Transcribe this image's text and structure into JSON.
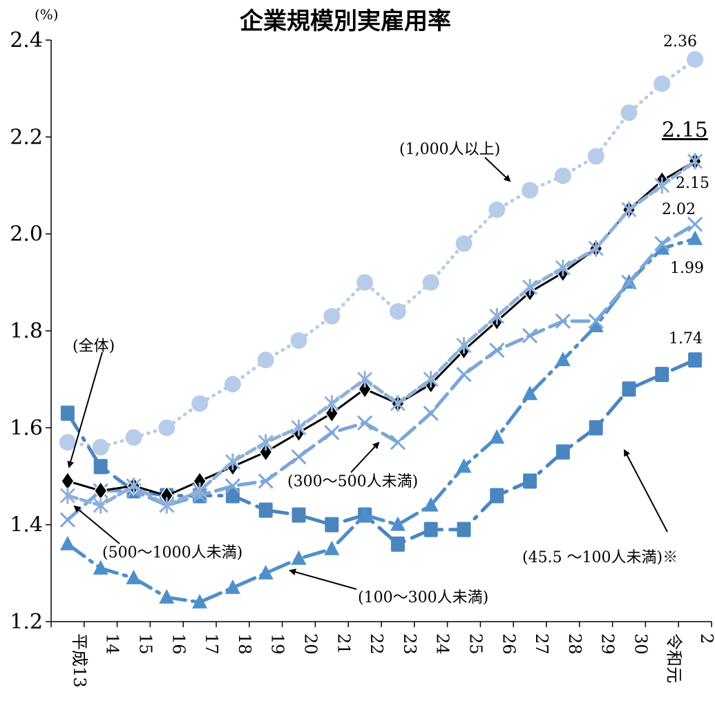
{
  "chart_data": {
    "type": "line",
    "title": "企業規模別実雇用率",
    "ylabel": "(%)",
    "xlabel": "",
    "ylim": [
      1.2,
      2.4
    ],
    "yticks": [
      "1.2",
      "1.4",
      "1.6",
      "1.8",
      "2.0",
      "2.2",
      "2.4"
    ],
    "categories": [
      "平成13",
      "14",
      "15",
      "16",
      "17",
      "18",
      "19",
      "20",
      "21",
      "22",
      "23",
      "24",
      "25",
      "26",
      "27",
      "28",
      "29",
      "30",
      "令和元",
      "2"
    ],
    "grid": false,
    "series": [
      {
        "name": "(1,000人以上)",
        "color": "#b7cce8",
        "values": [
          1.57,
          1.56,
          1.58,
          1.6,
          1.65,
          1.69,
          1.74,
          1.78,
          1.83,
          1.9,
          1.84,
          1.9,
          1.98,
          2.05,
          2.09,
          2.12,
          2.16,
          2.25,
          2.31,
          2.36
        ]
      },
      {
        "name": "(全体)",
        "color": "#000000",
        "values": [
          1.49,
          1.47,
          1.48,
          1.46,
          1.49,
          1.52,
          1.55,
          1.59,
          1.63,
          1.68,
          1.65,
          1.69,
          1.76,
          1.82,
          1.88,
          1.92,
          1.97,
          2.05,
          2.11,
          2.15
        ]
      },
      {
        "name": "(500～1000人未満)",
        "color": "#8fb0da",
        "values": [
          1.46,
          1.44,
          1.48,
          1.44,
          1.47,
          1.53,
          1.57,
          1.6,
          1.65,
          1.7,
          1.65,
          1.7,
          1.77,
          1.83,
          1.89,
          1.93,
          1.97,
          2.05,
          2.1,
          2.15
        ]
      },
      {
        "name": "(300～500人未満)",
        "color": "#7ba6d8",
        "values": [
          1.41,
          1.47,
          1.47,
          1.44,
          1.46,
          1.48,
          1.49,
          1.54,
          1.59,
          1.61,
          1.57,
          1.63,
          1.71,
          1.76,
          1.79,
          1.82,
          1.82,
          1.9,
          1.98,
          2.02
        ]
      },
      {
        "name": "(100～300人未満)",
        "color": "#4f8fc9",
        "values": [
          1.36,
          1.31,
          1.29,
          1.25,
          1.24,
          1.27,
          1.3,
          1.33,
          1.35,
          1.42,
          1.4,
          1.44,
          1.52,
          1.58,
          1.67,
          1.74,
          1.81,
          1.9,
          1.97,
          1.99
        ]
      },
      {
        "name": "(45.5 ～100人未満)※",
        "color": "#4a85bf",
        "values": [
          1.63,
          1.52,
          1.47,
          1.46,
          1.46,
          1.46,
          1.43,
          1.42,
          1.4,
          1.42,
          1.36,
          1.39,
          1.39,
          1.46,
          1.49,
          1.55,
          1.6,
          1.68,
          1.71,
          1.74
        ]
      }
    ],
    "end_labels": [
      "2.36",
      "2.15",
      "2.15",
      "2.02",
      "1.99",
      "1.74"
    ]
  }
}
